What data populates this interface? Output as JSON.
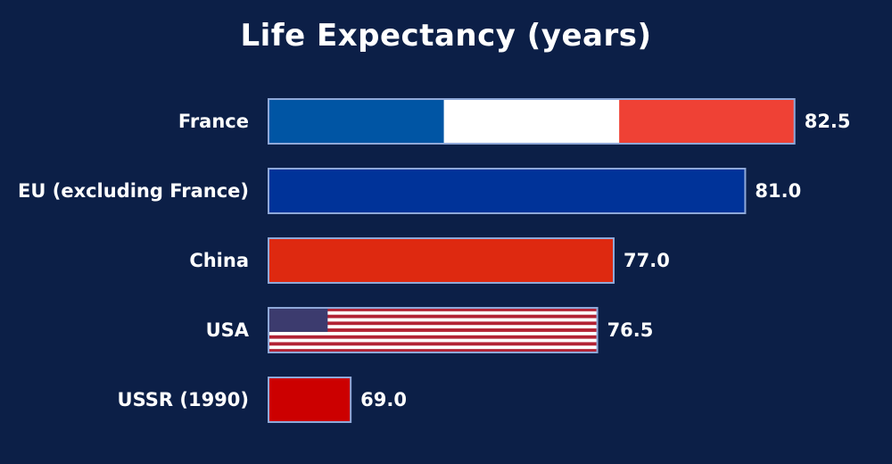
{
  "chart_data": {
    "type": "bar",
    "orientation": "horizontal",
    "title": "Life Expectancy (years)",
    "xlabel": "",
    "ylabel": "",
    "xlim": [
      66.5,
      84
    ],
    "grid": false,
    "categories": [
      "France",
      "EU (excluding France)",
      "China",
      "USA",
      "USSR (1990)"
    ],
    "values": [
      82.5,
      81.0,
      77.0,
      76.5,
      69.0
    ],
    "value_labels": [
      "82.5",
      "81.0",
      "77.0",
      "76.5",
      "69.0"
    ],
    "bar_styles": [
      "flag-france",
      "flag-eu",
      "flag-china",
      "flag-usa",
      "flag-ussr"
    ]
  },
  "colors": {
    "background": "#0c1f47",
    "bar_border": "#8fa8d8",
    "france_blue": "#0055a4",
    "france_white": "#ffffff",
    "france_red": "#ef4135",
    "eu_blue": "#003399",
    "china_red": "#de2910",
    "usa_red": "#b22234",
    "usa_white": "#ffffff",
    "usa_canton": "#3c3b6e",
    "ussr_red": "#cc0000",
    "text": "#ffffff"
  }
}
